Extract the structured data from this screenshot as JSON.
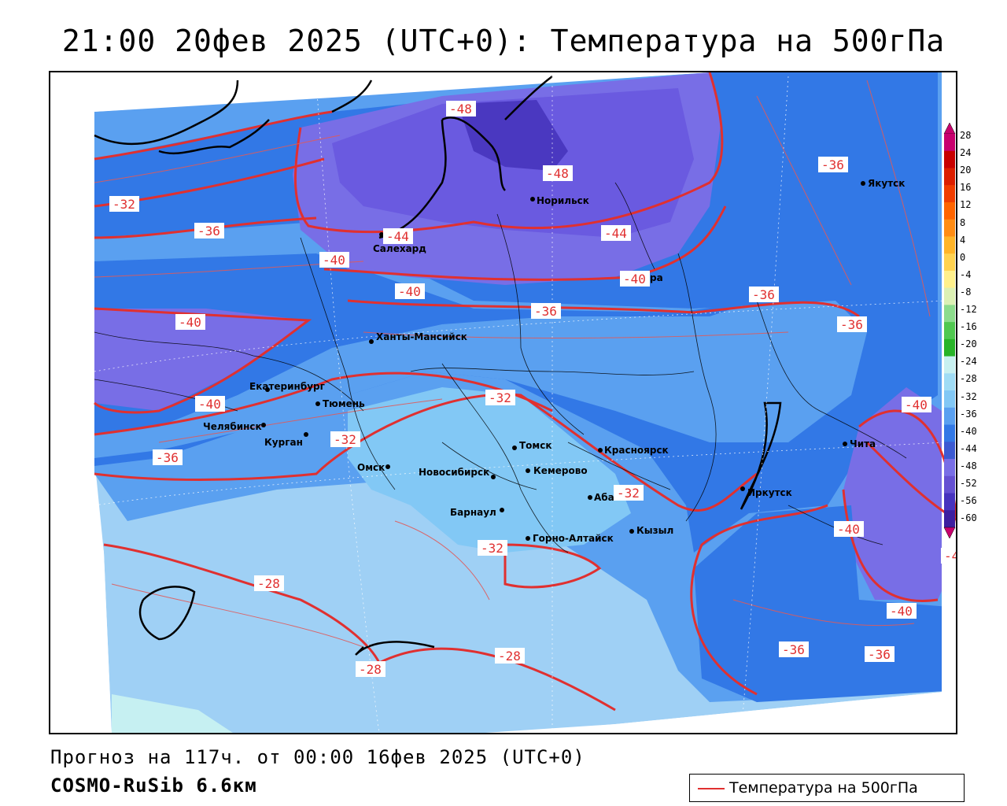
{
  "title": "21:00 20фев 2025 (UTC+0): Температура на 500гПа",
  "footer": {
    "forecast": "Прогноз на 117ч. от 00:00 16фев 2025 (UTC+0)",
    "model": "COSMO-RuSib 6.6км"
  },
  "legend": {
    "label": "Температура на 500гПа",
    "line_color": "#e03030"
  },
  "colorbar": {
    "ticks": [
      "28",
      "24",
      "20",
      "16",
      "12",
      "8",
      "4",
      "0",
      "-4",
      "-8",
      "-12",
      "-16",
      "-20",
      "-24",
      "-28",
      "-32",
      "-36",
      "-40",
      "-44",
      "-48",
      "-52",
      "-56",
      "-60"
    ],
    "colors": [
      "#c8006e",
      "#c80000",
      "#dc1e00",
      "#f03c00",
      "#ff6400",
      "#ff8c14",
      "#ffb428",
      "#ffd250",
      "#fff08c",
      "#dcf0b4",
      "#8cdc8c",
      "#50c850",
      "#28b428",
      "#c8f0f0",
      "#a0dcf5",
      "#82c8f5",
      "#5aa0f0",
      "#3278e6",
      "#3c5ad2",
      "#786ee6",
      "#6450d2",
      "#4632be",
      "#3c1ea0"
    ]
  },
  "cities": [
    {
      "name": "Норильск"
    },
    {
      "name": "Якутск"
    },
    {
      "name": "Салехард"
    },
    {
      "name": "Тура"
    },
    {
      "name": "Ханты-Мансийск"
    },
    {
      "name": "Екатеринбург"
    },
    {
      "name": "Тюмень"
    },
    {
      "name": "Челябинск"
    },
    {
      "name": "Курган"
    },
    {
      "name": "Омск"
    },
    {
      "name": "Новосибирск"
    },
    {
      "name": "Томск"
    },
    {
      "name": "Кемерово"
    },
    {
      "name": "Красноярск"
    },
    {
      "name": "Барнаул"
    },
    {
      "name": "Абакан"
    },
    {
      "name": "Горно-Алтайск"
    },
    {
      "name": "Кызыл"
    },
    {
      "name": "Иркутск"
    },
    {
      "name": "Чита"
    }
  ],
  "contour_labels": [
    "-48",
    "-48",
    "-36",
    "-32",
    "-36",
    "-44",
    "-44",
    "-40",
    "-40",
    "-40",
    "-36",
    "-36",
    "-40",
    "-36",
    "-32",
    "-40",
    "-32",
    "-40",
    "-36",
    "-32",
    "-32",
    "-40",
    "-4",
    "-28",
    "-28",
    "-28",
    "-40",
    "-36",
    "-36"
  ]
}
